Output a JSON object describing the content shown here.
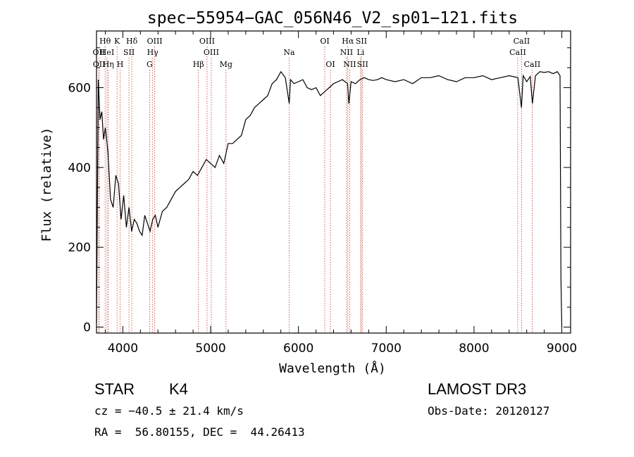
{
  "chart_data": {
    "type": "line",
    "title": "spec−55954−GAC_056N46_V2_sp01−121.fits",
    "xlabel": "Wavelength (Å)",
    "ylabel": "Flux (relative)",
    "xlim": [
      3700,
      9100
    ],
    "ylim": [
      -15,
      742
    ],
    "x_ticks": [
      4000,
      5000,
      6000,
      7000,
      8000,
      9000
    ],
    "x_tick_labels": [
      "4000",
      "5000",
      "6000",
      "7000",
      "8000",
      "9000"
    ],
    "y_ticks": [
      0,
      200,
      400,
      600
    ],
    "y_tick_labels": [
      "0",
      "200",
      "400",
      "600"
    ],
    "line_color": "#000000",
    "marker_color": "#c0392b",
    "series": [
      {
        "name": "flux",
        "x": [
          3700,
          3720,
          3740,
          3760,
          3780,
          3800,
          3830,
          3860,
          3890,
          3920,
          3950,
          3980,
          4010,
          4040,
          4070,
          4100,
          4130,
          4160,
          4190,
          4220,
          4250,
          4280,
          4310,
          4340,
          4370,
          4400,
          4450,
          4500,
          4550,
          4600,
          4650,
          4700,
          4750,
          4800,
          4850,
          4900,
          4950,
          5000,
          5050,
          5100,
          5150,
          5200,
          5250,
          5300,
          5350,
          5400,
          5450,
          5500,
          5550,
          5600,
          5650,
          5700,
          5750,
          5800,
          5850,
          5895,
          5910,
          5950,
          6000,
          6050,
          6100,
          6150,
          6200,
          6250,
          6300,
          6350,
          6400,
          6450,
          6500,
          6560,
          6575,
          6600,
          6650,
          6700,
          6750,
          6800,
          6850,
          6900,
          6950,
          7000,
          7100,
          7200,
          7300,
          7400,
          7500,
          7600,
          7700,
          7800,
          7900,
          8000,
          8100,
          8200,
          8300,
          8400,
          8500,
          8540,
          8560,
          8600,
          8640,
          8665,
          8700,
          8750,
          8800,
          8850,
          8900,
          8950,
          8980,
          8990,
          9000
        ],
        "values": [
          10,
          620,
          520,
          540,
          470,
          500,
          440,
          320,
          300,
          380,
          360,
          270,
          330,
          250,
          300,
          240,
          270,
          260,
          240,
          230,
          280,
          260,
          240,
          270,
          280,
          250,
          290,
          300,
          320,
          340,
          350,
          360,
          370,
          390,
          380,
          400,
          420,
          410,
          400,
          430,
          410,
          460,
          460,
          470,
          480,
          520,
          530,
          550,
          560,
          570,
          580,
          610,
          620,
          640,
          625,
          560,
          620,
          610,
          615,
          620,
          600,
          595,
          600,
          580,
          590,
          600,
          610,
          615,
          620,
          610,
          560,
          615,
          610,
          620,
          625,
          620,
          618,
          620,
          625,
          620,
          615,
          620,
          610,
          625,
          625,
          630,
          620,
          615,
          625,
          625,
          630,
          620,
          625,
          630,
          625,
          550,
          630,
          615,
          628,
          560,
          630,
          640,
          638,
          640,
          635,
          640,
          630,
          120,
          0
        ]
      }
    ],
    "line_markers": [
      {
        "label": "OII",
        "x": 3727,
        "row": 2
      },
      {
        "label": "OII",
        "x": 3729,
        "row": 3
      },
      {
        "label": "Hθ",
        "x": 3798,
        "row": 1
      },
      {
        "label": "HeI",
        "x": 3820,
        "row": 2
      },
      {
        "label": "Hη",
        "x": 3835,
        "row": 3
      },
      {
        "label": "K",
        "x": 3934,
        "row": 1
      },
      {
        "label": "SII",
        "x": 4070,
        "row": 2
      },
      {
        "label": "H",
        "x": 3969,
        "row": 3
      },
      {
        "label": "Hδ",
        "x": 4102,
        "row": 1
      },
      {
        "label": "OIII",
        "x": 4363,
        "row": 1
      },
      {
        "label": "Hγ",
        "x": 4340,
        "row": 2
      },
      {
        "label": "G",
        "x": 4305,
        "row": 3
      },
      {
        "label": "OIII",
        "x": 4959,
        "row": 1
      },
      {
        "label": "OIII",
        "x": 5007,
        "row": 2
      },
      {
        "label": "Hβ",
        "x": 4861,
        "row": 3
      },
      {
        "label": "Mg",
        "x": 5175,
        "row": 3
      },
      {
        "label": "Na",
        "x": 5894,
        "row": 2
      },
      {
        "label": "OI",
        "x": 6300,
        "row": 1
      },
      {
        "label": "OI",
        "x": 6364,
        "row": 3
      },
      {
        "label": "Hα",
        "x": 6563,
        "row": 1
      },
      {
        "label": "NII",
        "x": 6548,
        "row": 2
      },
      {
        "label": "NII",
        "x": 6584,
        "row": 3
      },
      {
        "label": "SII",
        "x": 6717,
        "row": 1
      },
      {
        "label": "Li",
        "x": 6708,
        "row": 2
      },
      {
        "label": "SII",
        "x": 6731,
        "row": 3
      },
      {
        "label": "CaII",
        "x": 8542,
        "row": 1
      },
      {
        "label": "CaII",
        "x": 8498,
        "row": 2
      },
      {
        "label": "CaII",
        "x": 8662,
        "row": 3
      }
    ]
  },
  "info": {
    "class_label": "STAR",
    "subclass": "K4",
    "survey": "LAMOST DR3",
    "cz": "cz = −40.5 ± 21.4 km/s",
    "obs_date": "Obs-Date: 20120127",
    "coords": "RA =  56.80155, DEC =  44.26413"
  }
}
